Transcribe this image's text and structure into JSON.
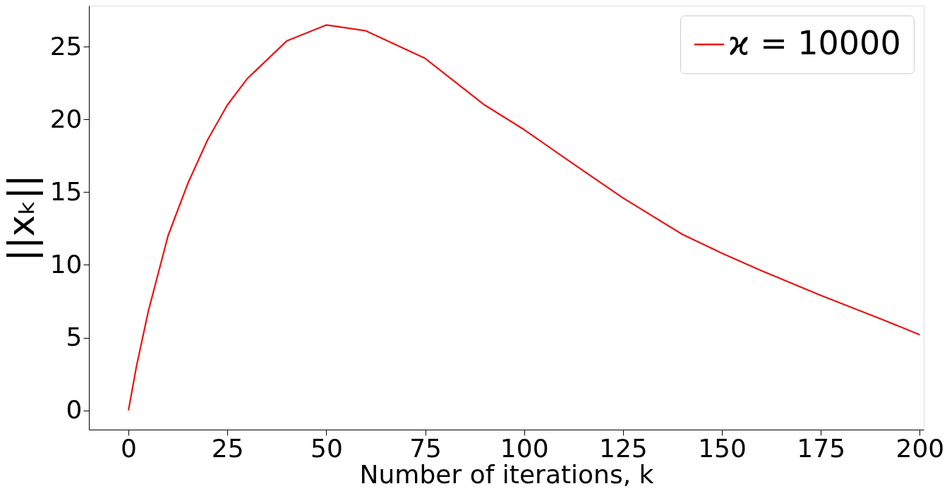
{
  "chart_data": {
    "type": "line",
    "xlabel": "Number of iterations, k",
    "ylabel": "||xₖ||",
    "x": [
      0,
      2,
      5,
      10,
      15,
      20,
      25,
      30,
      40,
      50,
      60,
      75,
      90,
      100,
      110,
      125,
      140,
      150,
      160,
      175,
      190,
      200
    ],
    "series": [
      {
        "name": "ϰ = 10000",
        "color": "#ee1111",
        "values": [
          0,
          3.0,
          6.8,
          12.0,
          15.6,
          18.6,
          21.0,
          22.8,
          25.4,
          26.5,
          26.1,
          24.2,
          21.0,
          19.3,
          17.4,
          14.6,
          12.1,
          10.8,
          9.6,
          7.9,
          6.3,
          5.2
        ]
      }
    ],
    "xlim": [
      -10,
      201
    ],
    "ylim": [
      -1.33,
      27.83
    ],
    "xticks": [
      0,
      25,
      50,
      75,
      100,
      125,
      150,
      175,
      200
    ],
    "yticks": [
      0,
      5,
      10,
      15,
      20,
      25
    ],
    "grid": false,
    "legend": "top right",
    "marker": "none",
    "line_style": "solid"
  }
}
